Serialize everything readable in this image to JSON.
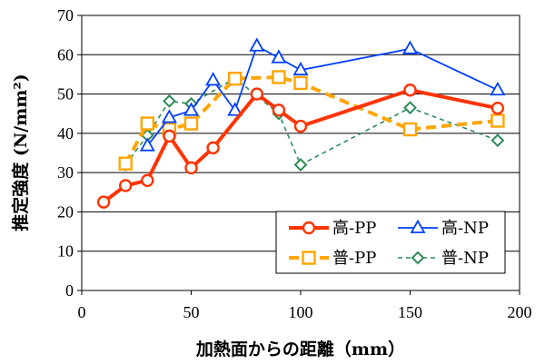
{
  "chart_data": {
    "type": "line",
    "xlabel": "加熱面からの距離（mm）",
    "ylabel": "推定強度 (N/mm²)",
    "xlim": [
      0,
      200
    ],
    "ylim": [
      0,
      70
    ],
    "x_ticks": [
      "0",
      "50",
      "100",
      "150",
      "200"
    ],
    "y_ticks": [
      "0",
      "10",
      "20",
      "30",
      "40",
      "50",
      "60",
      "70"
    ],
    "grid": "horizontal",
    "legend_position": "bottom-right",
    "series": [
      {
        "name": "高-PP",
        "color": "#ff3300",
        "marker": "circle",
        "dash": "solid",
        "x": [
          10,
          20,
          30,
          40,
          50,
          60,
          80,
          90,
          100,
          150,
          190
        ],
        "y": [
          22.5,
          26.7,
          28.0,
          39.3,
          31.2,
          36.3,
          50.0,
          45.9,
          41.8,
          51.0,
          46.4
        ]
      },
      {
        "name": "高-NP",
        "color": "#0040ff",
        "marker": "triangle",
        "dash": "solid",
        "x": [
          30,
          40,
          50,
          60,
          70,
          80,
          90,
          100,
          150,
          190
        ],
        "y": [
          36.8,
          44.0,
          45.8,
          53.5,
          45.8,
          62.2,
          59.2,
          56.1,
          61.5,
          51.0
        ]
      },
      {
        "name": "普-PP",
        "color": "#ffa500",
        "marker": "square",
        "dash": "dashed",
        "x": [
          20,
          30,
          40,
          50,
          70,
          90,
          100,
          150,
          190
        ],
        "y": [
          32.3,
          42.5,
          41.0,
          42.5,
          53.9,
          54.3,
          52.8,
          41.0,
          43.2
        ]
      },
      {
        "name": "普-NP",
        "color": "#2e8b57",
        "marker": "diamond",
        "dash": "dotted",
        "x": [
          20,
          30,
          40,
          50,
          70,
          90,
          100,
          150,
          190
        ],
        "y": [
          32.0,
          39.5,
          48.2,
          47.5,
          54.0,
          45.0,
          32.0,
          46.5,
          38.2
        ]
      }
    ]
  }
}
